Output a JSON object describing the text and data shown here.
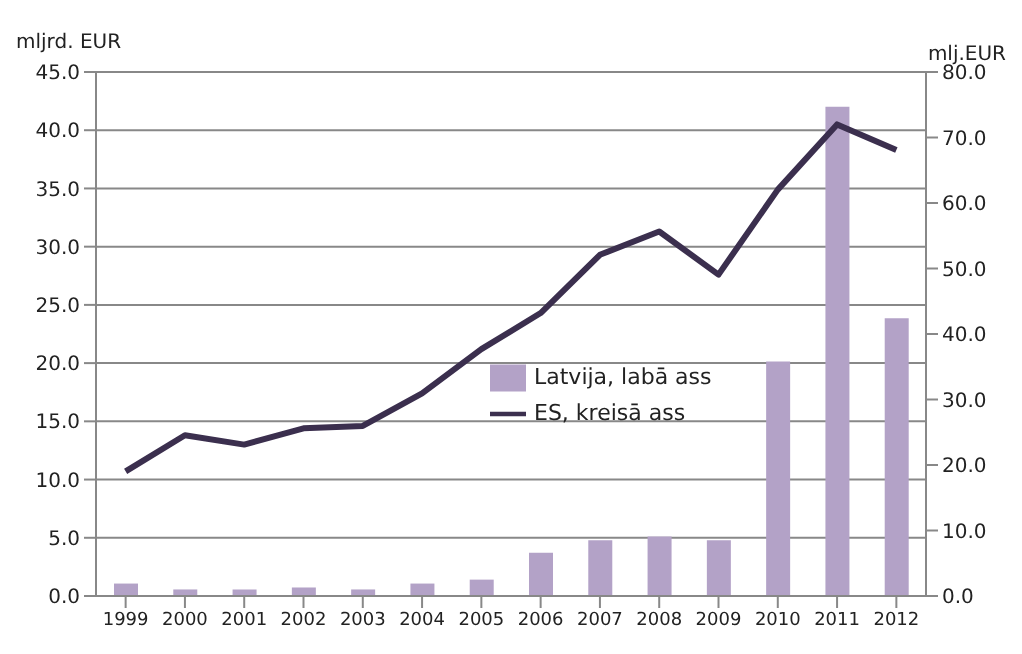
{
  "chart_data": {
    "type": "bar",
    "ylabel": "mljrd. EUR",
    "y2label": "mlj.EUR",
    "categories": [
      "1999",
      "2000",
      "2001",
      "2002",
      "2003",
      "2004",
      "2005",
      "2006",
      "2007",
      "2008",
      "2009",
      "2010",
      "2011",
      "2012"
    ],
    "series": [
      {
        "name": "Latvija, labā ass",
        "axis": "y2",
        "color": "#b3a2c7",
        "values": [
          1.9,
          1.0,
          1.0,
          1.3,
          1.0,
          1.9,
          2.5,
          6.6,
          8.5,
          9.1,
          8.5,
          35.8,
          74.7,
          42.4
        ]
      },
      {
        "name": "ES, kreisā ass",
        "type": "line",
        "color": "#3b2f4e",
        "values": [
          10.7,
          13.8,
          13.0,
          14.4,
          14.6,
          17.4,
          21.2,
          24.3,
          29.3,
          31.3,
          27.6,
          34.9,
          40.5,
          38.3
        ]
      }
    ],
    "ylim": [
      0,
      45
    ],
    "yticks": [
      {
        "value": 0,
        "label": "0.0"
      },
      {
        "value": 5,
        "label": "5.0"
      },
      {
        "value": 10,
        "label": "10.0"
      },
      {
        "value": 15,
        "label": "15.0"
      },
      {
        "value": 20,
        "label": "20.0"
      },
      {
        "value": 25,
        "label": "25.0"
      },
      {
        "value": 30,
        "label": "30.0"
      },
      {
        "value": 35,
        "label": "35.0"
      },
      {
        "value": 40,
        "label": "40.0"
      },
      {
        "value": 45,
        "label": "45.0"
      }
    ],
    "y2lim": [
      0,
      80
    ],
    "y2ticks": [
      {
        "value": 0,
        "label": "0.0"
      },
      {
        "value": 10,
        "label": "10.0"
      },
      {
        "value": 20,
        "label": "20.0"
      },
      {
        "value": 30,
        "label": "30.0"
      },
      {
        "value": 40,
        "label": "40.0"
      },
      {
        "value": 50,
        "label": "50.0"
      },
      {
        "value": 60,
        "label": "60.0"
      },
      {
        "value": 70,
        "label": "70.0"
      },
      {
        "value": 80,
        "label": "80.0"
      }
    ],
    "grid": "y",
    "legend": "center",
    "marker": "none"
  }
}
